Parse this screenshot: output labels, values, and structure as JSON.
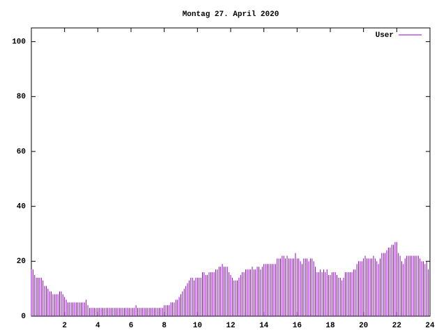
{
  "chart_data": {
    "type": "impulses",
    "title": "Montag 27. April 2020",
    "x": [
      0,
      0.1,
      0.2,
      0.3,
      0.4,
      0.5,
      0.6,
      0.7,
      0.8,
      0.9,
      1,
      1.1,
      1.2,
      1.3,
      1.4,
      1.5,
      1.6,
      1.7,
      1.8,
      1.9,
      2,
      2.1,
      2.2,
      2.3,
      2.4,
      2.5,
      2.6,
      2.7,
      2.8,
      2.9,
      3,
      3.1,
      3.2,
      3.3,
      3.4,
      3.5,
      3.6,
      3.7,
      3.8,
      3.9,
      4,
      4.1,
      4.2,
      4.3,
      4.4,
      4.5,
      4.6,
      4.7,
      4.8,
      4.9,
      5,
      5.1,
      5.2,
      5.3,
      5.4,
      5.5,
      5.6,
      5.7,
      5.8,
      5.9,
      6,
      6.1,
      6.2,
      6.3,
      6.4,
      6.5,
      6.6,
      6.7,
      6.8,
      6.9,
      7,
      7.1,
      7.2,
      7.3,
      7.4,
      7.5,
      7.6,
      7.7,
      7.8,
      7.9,
      8,
      8.1,
      8.2,
      8.3,
      8.4,
      8.5,
      8.6,
      8.7,
      8.8,
      8.9,
      9,
      9.1,
      9.2,
      9.3,
      9.4,
      9.5,
      9.6,
      9.7,
      9.8,
      9.9,
      10,
      10.1,
      10.2,
      10.3,
      10.4,
      10.5,
      10.6,
      10.7,
      10.8,
      10.9,
      11,
      11.1,
      11.2,
      11.3,
      11.4,
      11.5,
      11.6,
      11.7,
      11.8,
      11.9,
      12,
      12.1,
      12.2,
      12.3,
      12.4,
      12.5,
      12.6,
      12.7,
      12.8,
      12.9,
      13,
      13.1,
      13.2,
      13.3,
      13.4,
      13.5,
      13.6,
      13.7,
      13.8,
      13.9,
      14,
      14.1,
      14.2,
      14.3,
      14.4,
      14.5,
      14.6,
      14.7,
      14.8,
      14.9,
      15,
      15.1,
      15.2,
      15.3,
      15.4,
      15.5,
      15.6,
      15.7,
      15.8,
      15.9,
      16,
      16.1,
      16.2,
      16.3,
      16.4,
      16.5,
      16.6,
      16.7,
      16.8,
      16.9,
      17,
      17.1,
      17.2,
      17.3,
      17.4,
      17.5,
      17.6,
      17.7,
      17.8,
      17.9,
      18,
      18.1,
      18.2,
      18.3,
      18.4,
      18.5,
      18.6,
      18.7,
      18.8,
      18.9,
      19,
      19.1,
      19.2,
      19.3,
      19.4,
      19.5,
      19.6,
      19.7,
      19.8,
      19.9,
      20,
      20.1,
      20.2,
      20.3,
      20.4,
      20.5,
      20.6,
      20.7,
      20.8,
      20.9,
      21,
      21.1,
      21.2,
      21.3,
      21.4,
      21.5,
      21.6,
      21.7,
      21.8,
      21.9,
      22,
      22.1,
      22.2,
      22.3,
      22.4,
      22.5,
      22.6,
      22.7,
      22.8,
      22.9,
      23,
      23.1,
      23.2,
      23.3,
      23.4,
      23.5,
      23.6,
      23.7,
      23.8,
      23.9
    ],
    "series": [
      {
        "name": "User",
        "color": "#9400d3",
        "values": [
          17,
          17,
          15,
          14,
          14,
          14,
          14,
          13,
          11,
          11,
          10,
          9,
          9,
          8,
          8,
          8,
          8,
          9,
          9,
          8,
          7,
          6,
          5,
          5,
          5,
          5,
          5,
          5,
          5,
          5,
          5,
          5,
          5,
          6,
          4,
          3,
          3,
          3,
          3,
          3,
          3,
          3,
          3,
          3,
          3,
          3,
          3,
          3,
          3,
          3,
          3,
          3,
          3,
          3,
          3,
          3,
          3,
          3,
          3,
          3,
          3,
          3,
          3,
          4,
          3,
          3,
          3,
          3,
          3,
          3,
          3,
          3,
          3,
          3,
          3,
          3,
          3,
          3,
          3,
          3,
          4,
          4,
          4,
          4,
          5,
          5,
          5,
          6,
          6,
          7,
          8,
          9,
          10,
          11,
          12,
          13,
          14,
          14,
          13,
          14,
          14,
          14,
          14,
          16,
          16,
          15,
          15,
          16,
          16,
          16,
          16,
          17,
          17,
          18,
          18,
          19,
          18,
          18,
          18,
          16,
          15,
          14,
          13,
          13,
          13,
          14,
          15,
          16,
          16,
          17,
          17,
          17,
          17,
          18,
          17,
          17,
          18,
          18,
          17,
          18,
          19,
          19,
          19,
          19,
          19,
          19,
          19,
          19,
          21,
          21,
          21,
          22,
          22,
          21,
          22,
          21,
          21,
          21,
          21,
          23,
          21,
          21,
          20,
          19,
          21,
          21,
          21,
          20,
          21,
          21,
          20,
          18,
          16,
          16,
          17,
          16,
          17,
          16,
          17,
          15,
          15,
          16,
          16,
          16,
          15,
          14,
          14,
          13,
          14,
          16,
          16,
          16,
          16,
          16,
          17,
          17,
          19,
          20,
          20,
          20,
          21,
          22,
          21,
          21,
          21,
          21,
          22,
          21,
          20,
          19,
          21,
          23,
          23,
          23,
          24,
          25,
          25,
          26,
          26,
          27,
          27,
          23,
          22,
          20,
          19,
          21,
          22,
          22,
          22,
          22,
          22,
          22,
          22,
          22,
          21,
          20,
          20,
          19,
          20,
          17
        ]
      }
    ],
    "xlim": [
      0,
      24
    ],
    "xticks": [
      2,
      4,
      6,
      8,
      10,
      12,
      14,
      16,
      18,
      20,
      22,
      24
    ],
    "ylim": [
      0,
      105
    ],
    "yticks": [
      0,
      20,
      40,
      60,
      80,
      100
    ],
    "legend": "upper right"
  }
}
